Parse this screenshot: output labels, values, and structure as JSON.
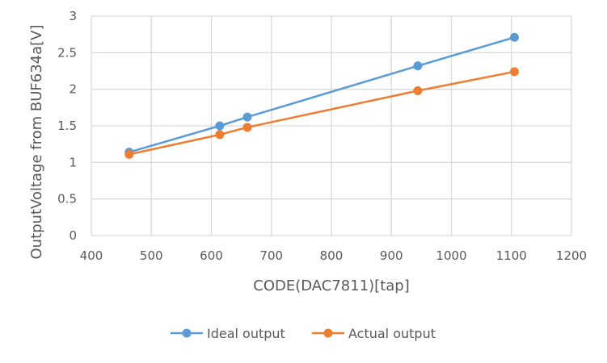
{
  "chart_data": {
    "type": "line",
    "title": "",
    "xlabel": "CODE(DAC7811)[tap]",
    "ylabel": "OutputVoltage from BUF634a[V]",
    "xlim": [
      400,
      1200
    ],
    "ylim": [
      0,
      3
    ],
    "xticks": [
      "400",
      "500",
      "600",
      "700",
      "800",
      "900",
      "1000",
      "1100",
      "1200"
    ],
    "yticks": [
      "0",
      "0.5",
      "1",
      "1.5",
      "2",
      "2.5",
      "3"
    ],
    "grid": true,
    "legend": "bottom",
    "series": [
      {
        "name": "Ideal output",
        "color": "#5B9BD5",
        "x": [
          463,
          614,
          660,
          944,
          1105
        ],
        "y": [
          1.14,
          1.5,
          1.62,
          2.32,
          2.71
        ]
      },
      {
        "name": "Actual output",
        "color": "#ED7D31",
        "x": [
          463,
          614,
          660,
          944,
          1105
        ],
        "y": [
          1.11,
          1.38,
          1.48,
          1.98,
          2.24
        ]
      }
    ]
  }
}
